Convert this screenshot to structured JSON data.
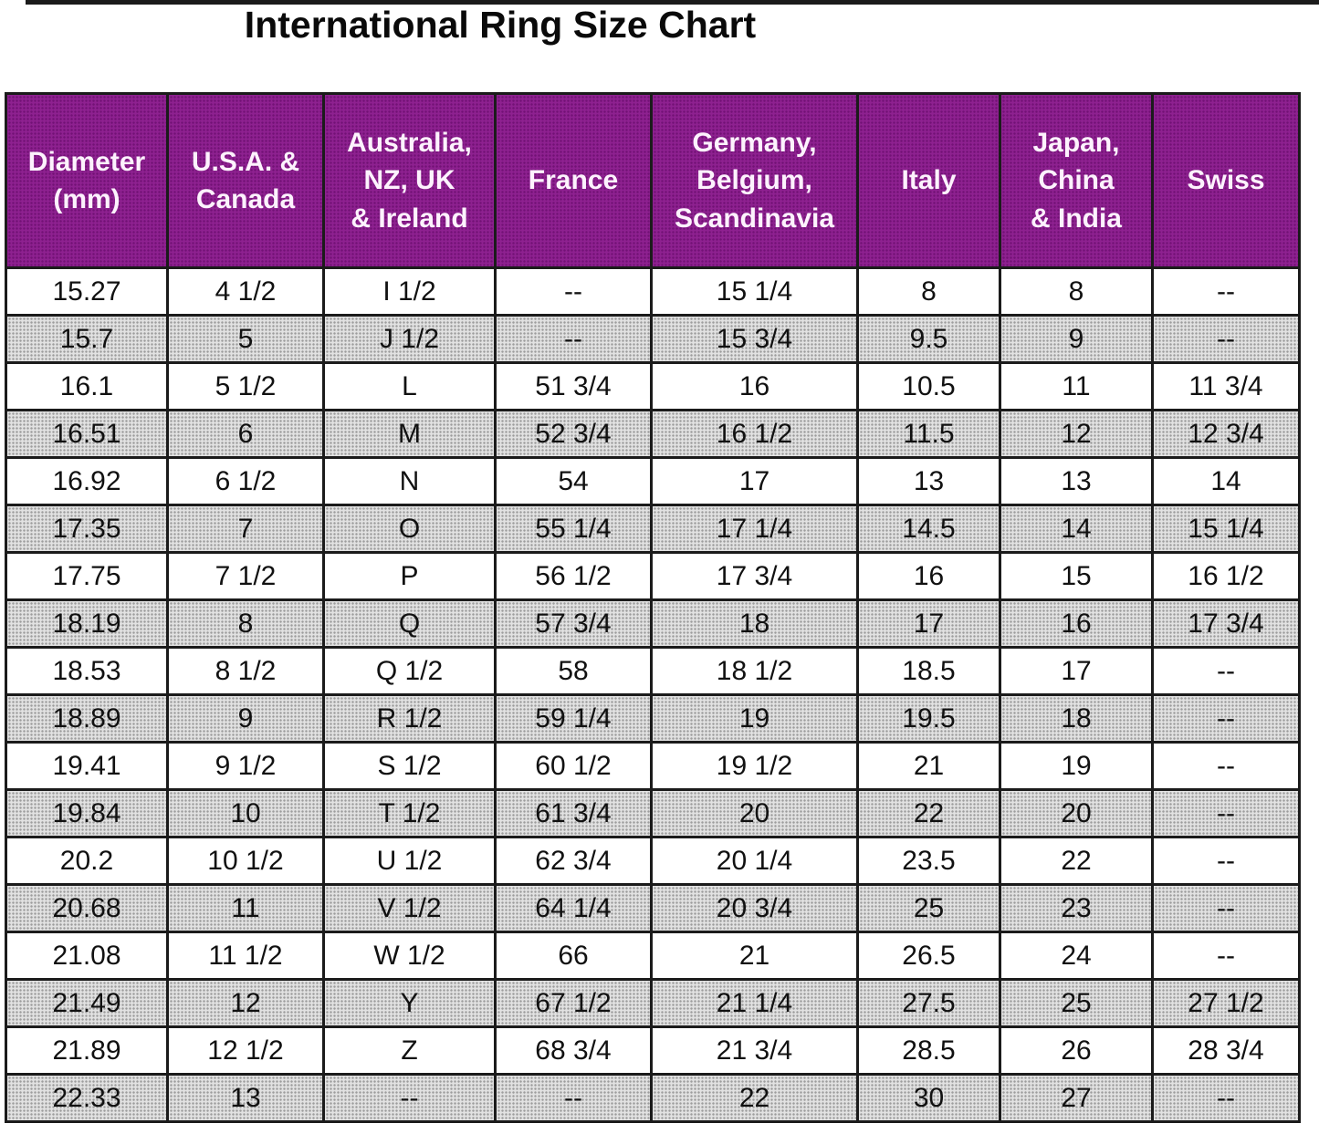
{
  "title": "International Ring Size Chart",
  "colors": {
    "header_bg": "#8e2190",
    "header_text": "#fdf2fd",
    "row_alt_bg": "#c9c9c9",
    "border": "#1b1b1b"
  },
  "table": {
    "headers": [
      [
        "Diameter",
        "(mm)"
      ],
      [
        "U.S.A. &",
        "Canada"
      ],
      [
        "Australia,",
        "NZ, UK",
        "& Ireland"
      ],
      [
        "France"
      ],
      [
        "Germany,",
        "Belgium,",
        "Scandinavia"
      ],
      [
        "Italy"
      ],
      [
        "Japan,",
        "China",
        "& India"
      ],
      [
        "Swiss"
      ]
    ],
    "rows": [
      [
        "15.27",
        "4 1/2",
        "I 1/2",
        "--",
        "15 1/4",
        "8",
        "8",
        "--"
      ],
      [
        "15.7",
        "5",
        "J 1/2",
        "--",
        "15 3/4",
        "9.5",
        "9",
        "--"
      ],
      [
        "16.1",
        "5 1/2",
        "L",
        "51 3/4",
        "16",
        "10.5",
        "11",
        "11 3/4"
      ],
      [
        "16.51",
        "6",
        "M",
        "52 3/4",
        "16 1/2",
        "11.5",
        "12",
        "12 3/4"
      ],
      [
        "16.92",
        "6 1/2",
        "N",
        "54",
        "17",
        "13",
        "13",
        "14"
      ],
      [
        "17.35",
        "7",
        "O",
        "55 1/4",
        "17 1/4",
        "14.5",
        "14",
        "15 1/4"
      ],
      [
        "17.75",
        "7 1/2",
        "P",
        "56 1/2",
        "17 3/4",
        "16",
        "15",
        "16 1/2"
      ],
      [
        "18.19",
        "8",
        "Q",
        "57 3/4",
        "18",
        "17",
        "16",
        "17 3/4"
      ],
      [
        "18.53",
        "8 1/2",
        "Q 1/2",
        "58",
        "18 1/2",
        "18.5",
        "17",
        "--"
      ],
      [
        "18.89",
        "9",
        "R 1/2",
        "59 1/4",
        "19",
        "19.5",
        "18",
        "--"
      ],
      [
        "19.41",
        "9 1/2",
        "S 1/2",
        "60 1/2",
        "19 1/2",
        "21",
        "19",
        "--"
      ],
      [
        "19.84",
        "10",
        "T 1/2",
        "61 3/4",
        "20",
        "22",
        "20",
        "--"
      ],
      [
        "20.2",
        "10 1/2",
        "U 1/2",
        "62 3/4",
        "20 1/4",
        "23.5",
        "22",
        "--"
      ],
      [
        "20.68",
        "11",
        "V 1/2",
        "64 1/4",
        "20 3/4",
        "25",
        "23",
        "--"
      ],
      [
        "21.08",
        "11 1/2",
        "W 1/2",
        "66",
        "21",
        "26.5",
        "24",
        "--"
      ],
      [
        "21.49",
        "12",
        "Y",
        "67 1/2",
        "21 1/4",
        "27.5",
        "25",
        "27 1/2"
      ],
      [
        "21.89",
        "12 1/2",
        "Z",
        "68 3/4",
        "21 3/4",
        "28.5",
        "26",
        "28 3/4"
      ],
      [
        "22.33",
        "13",
        "--",
        "--",
        "22",
        "30",
        "27",
        "--"
      ]
    ]
  }
}
